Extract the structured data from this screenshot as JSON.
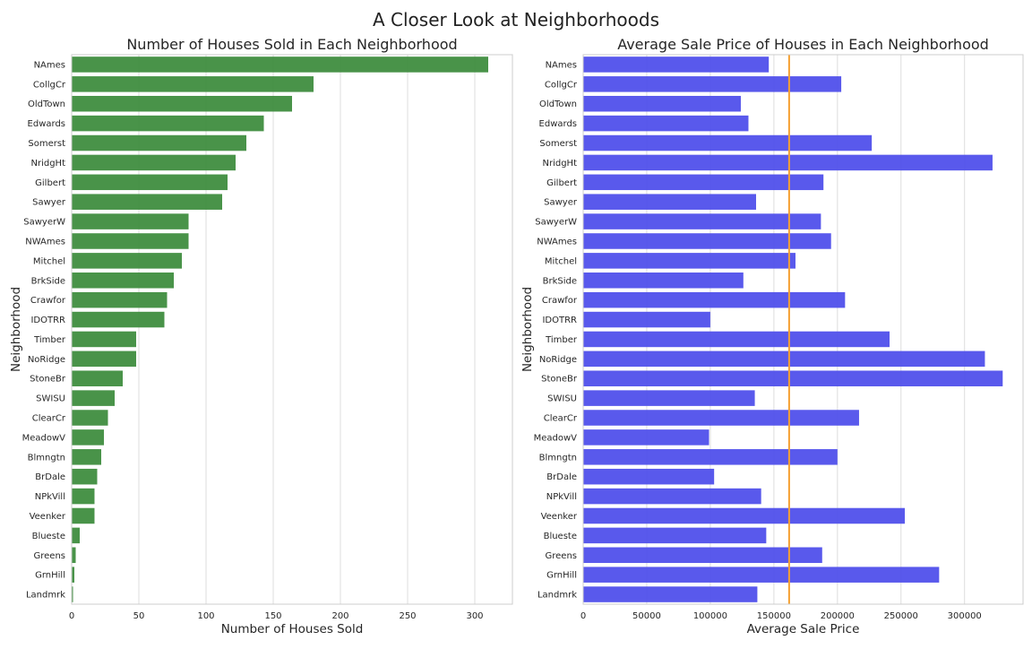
{
  "figure_title": "A Closer Look at Neighborhoods",
  "colors": {
    "bar_left": "#3a8a3a",
    "bar_right": "#4b4bea",
    "mean_line": "#f5a030",
    "grid": "#dddddd",
    "axes": "#cccccc"
  },
  "chart_data": [
    {
      "type": "bar",
      "orientation": "horizontal",
      "title": "Number of Houses Sold in Each Neighborhood",
      "xlabel": "Number of Houses Sold",
      "ylabel": "Neighborhood",
      "xlim": [
        0,
        328
      ],
      "xticks": [
        0,
        50,
        100,
        150,
        200,
        250,
        300
      ],
      "xtick_labels": [
        "0",
        "50",
        "100",
        "150",
        "200",
        "250",
        "300"
      ],
      "grid": true,
      "categories": [
        "NAmes",
        "CollgCr",
        "OldTown",
        "Edwards",
        "Somerst",
        "NridgHt",
        "Gilbert",
        "Sawyer",
        "SawyerW",
        "NWAmes",
        "Mitchel",
        "BrkSide",
        "Crawfor",
        "IDOTRR",
        "Timber",
        "NoRidge",
        "StoneBr",
        "SWISU",
        "ClearCr",
        "MeadowV",
        "Blmngtn",
        "BrDale",
        "NPkVill",
        "Veenker",
        "Blueste",
        "Greens",
        "GrnHill",
        "Landmrk"
      ],
      "values": [
        310,
        180,
        164,
        143,
        130,
        122,
        116,
        112,
        87,
        87,
        82,
        76,
        71,
        69,
        48,
        48,
        38,
        32,
        27,
        24,
        22,
        19,
        17,
        17,
        6,
        3,
        2,
        1
      ]
    },
    {
      "type": "bar",
      "orientation": "horizontal",
      "title": "Average Sale Price of Houses in Each Neighborhood",
      "xlabel": "Average Sale Price",
      "ylabel": "Neighborhood",
      "xlim": [
        0,
        346000
      ],
      "xticks": [
        0,
        50000,
        100000,
        150000,
        200000,
        250000,
        300000
      ],
      "xtick_labels": [
        "0",
        "50000",
        "100000",
        "150000",
        "200000",
        "250000",
        "300000"
      ],
      "grid": true,
      "reference_line": {
        "orientation": "vertical",
        "x": 162000
      },
      "categories": [
        "NAmes",
        "CollgCr",
        "OldTown",
        "Edwards",
        "Somerst",
        "NridgHt",
        "Gilbert",
        "Sawyer",
        "SawyerW",
        "NWAmes",
        "Mitchel",
        "BrkSide",
        "Crawfor",
        "IDOTRR",
        "Timber",
        "NoRidge",
        "StoneBr",
        "SWISU",
        "ClearCr",
        "MeadowV",
        "Blmngtn",
        "BrDale",
        "NPkVill",
        "Veenker",
        "Blueste",
        "Greens",
        "GrnHill",
        "Landmrk"
      ],
      "values": [
        146000,
        203000,
        124000,
        130000,
        227000,
        322000,
        189000,
        136000,
        187000,
        195000,
        167000,
        126000,
        206000,
        100000,
        241000,
        316000,
        330000,
        135000,
        217000,
        99000,
        200000,
        103000,
        140000,
        253000,
        144000,
        188000,
        280000,
        137000
      ]
    }
  ]
}
